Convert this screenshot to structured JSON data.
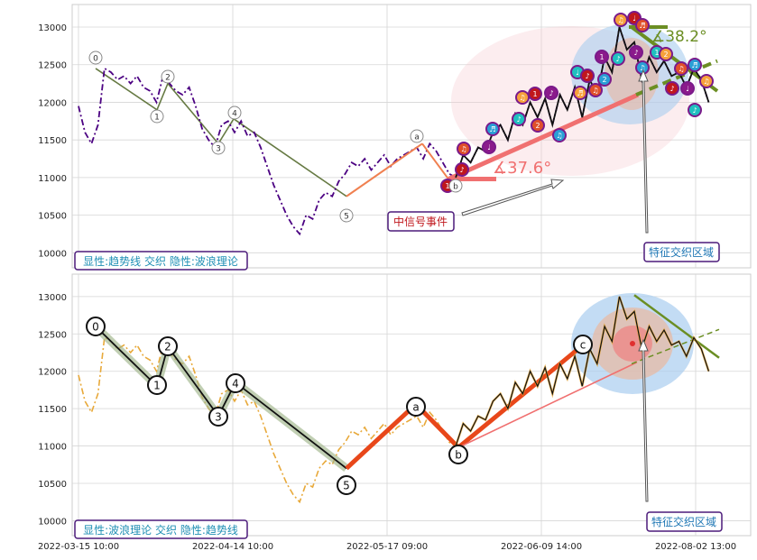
{
  "chart_data": [
    {
      "type": "line",
      "panel": "top",
      "yticks": [
        10000,
        10500,
        11000,
        11500,
        12000,
        12500,
        13000
      ],
      "ylim": [
        9800,
        13300
      ],
      "legend_text": "显性:趋势线 交织 隐性:波浪理论",
      "mid_signal_label": "中信号事件",
      "zone_label": "特征交织区域",
      "angle_labels": [
        "∡37.6°",
        "∡38.2°"
      ],
      "wave_labels": [
        "0",
        "1",
        "2",
        "3",
        "4",
        "5",
        "a",
        "b"
      ],
      "series": [
        {
          "values": [
            11950,
            11600,
            11450,
            11700,
            12450,
            12400,
            12300,
            12350,
            12250,
            12350,
            12200,
            12150,
            12000,
            12350,
            12250,
            12150,
            12100,
            12200,
            11950,
            11650,
            11500,
            11400,
            11700,
            11750,
            11600,
            11750,
            11550,
            11600,
            11400,
            11150,
            10900,
            10700,
            10500,
            10350,
            10250,
            10500,
            10450,
            10700,
            10800,
            10750,
            10950,
            11050,
            11200,
            11150,
            11250,
            11100,
            11200,
            11300,
            11150,
            11250,
            11300,
            11350,
            11400,
            11250,
            11450,
            11350,
            11200,
            11050,
            11000
          ]
        }
      ],
      "trend_points": [
        [
          0.02,
          12450
        ],
        [
          0.18,
          11850
        ],
        [
          0.2,
          12250
        ],
        [
          0.33,
          11450
        ],
        [
          0.37,
          11780
        ],
        [
          0.62,
          10750
        ]
      ],
      "signal_points": [
        [
          0.62,
          10750
        ],
        [
          0.79,
          11450
        ],
        [
          0.86,
          11000
        ]
      ],
      "marker_labels": [
        "♪",
        "♫",
        "♩",
        "♬",
        "♪",
        "♫",
        "1",
        "2"
      ]
    },
    {
      "type": "line",
      "panel": "bottom",
      "yticks": [
        10000,
        10500,
        11000,
        11500,
        12000,
        12500,
        13000
      ],
      "ylim": [
        9800,
        13300
      ],
      "xticks": [
        "2022-03-15 10:00",
        "2022-04-14 10:00",
        "2022-05-17 09:00",
        "2022-06-09 14:00",
        "2022-08-02 13:00"
      ],
      "legend_text": "显性:波浪理论 交织 隐性:趋势线",
      "zone_label": "特征交织区域",
      "wave_labels": [
        "0",
        "1",
        "2",
        "3",
        "4",
        "5",
        "a",
        "b",
        "c"
      ],
      "series": [
        {
          "values": [
            11950,
            11600,
            11450,
            11700,
            12450,
            12400,
            12300,
            12350,
            12250,
            12350,
            12200,
            12150,
            12000,
            12350,
            12250,
            12150,
            12100,
            12200,
            11950,
            11650,
            11500,
            11400,
            11700,
            11750,
            11600,
            11750,
            11550,
            11600,
            11400,
            11150,
            10900,
            10700,
            10500,
            10350,
            10250,
            10500,
            10450,
            10700,
            10800,
            10750,
            10950,
            11050,
            11200,
            11150,
            11250,
            11100,
            11200,
            11300,
            11150,
            11250,
            11300,
            11350,
            11400,
            11250,
            11450,
            11350,
            11200,
            11050,
            11000
          ]
        },
        {
          "values": [
            11000,
            11300,
            11200,
            11400,
            11350,
            11600,
            11700,
            11500,
            11850,
            11700,
            12000,
            11800,
            12050,
            11700,
            12100,
            11900,
            12200,
            11800,
            12300,
            12100,
            12600,
            12400,
            13000,
            12700,
            12800,
            12300,
            12600,
            12400,
            12550,
            12350,
            12400,
            12200,
            12450,
            12300,
            12000
          ]
        }
      ],
      "wave_points": [
        [
          0.02,
          12600
        ],
        [
          0.18,
          11800
        ],
        [
          0.2,
          12300
        ],
        [
          0.33,
          11400
        ],
        [
          0.37,
          11850
        ],
        [
          0.62,
          10500
        ],
        [
          0.78,
          11550
        ],
        [
          0.86,
          10950
        ],
        [
          1.0,
          12350
        ]
      ]
    }
  ]
}
